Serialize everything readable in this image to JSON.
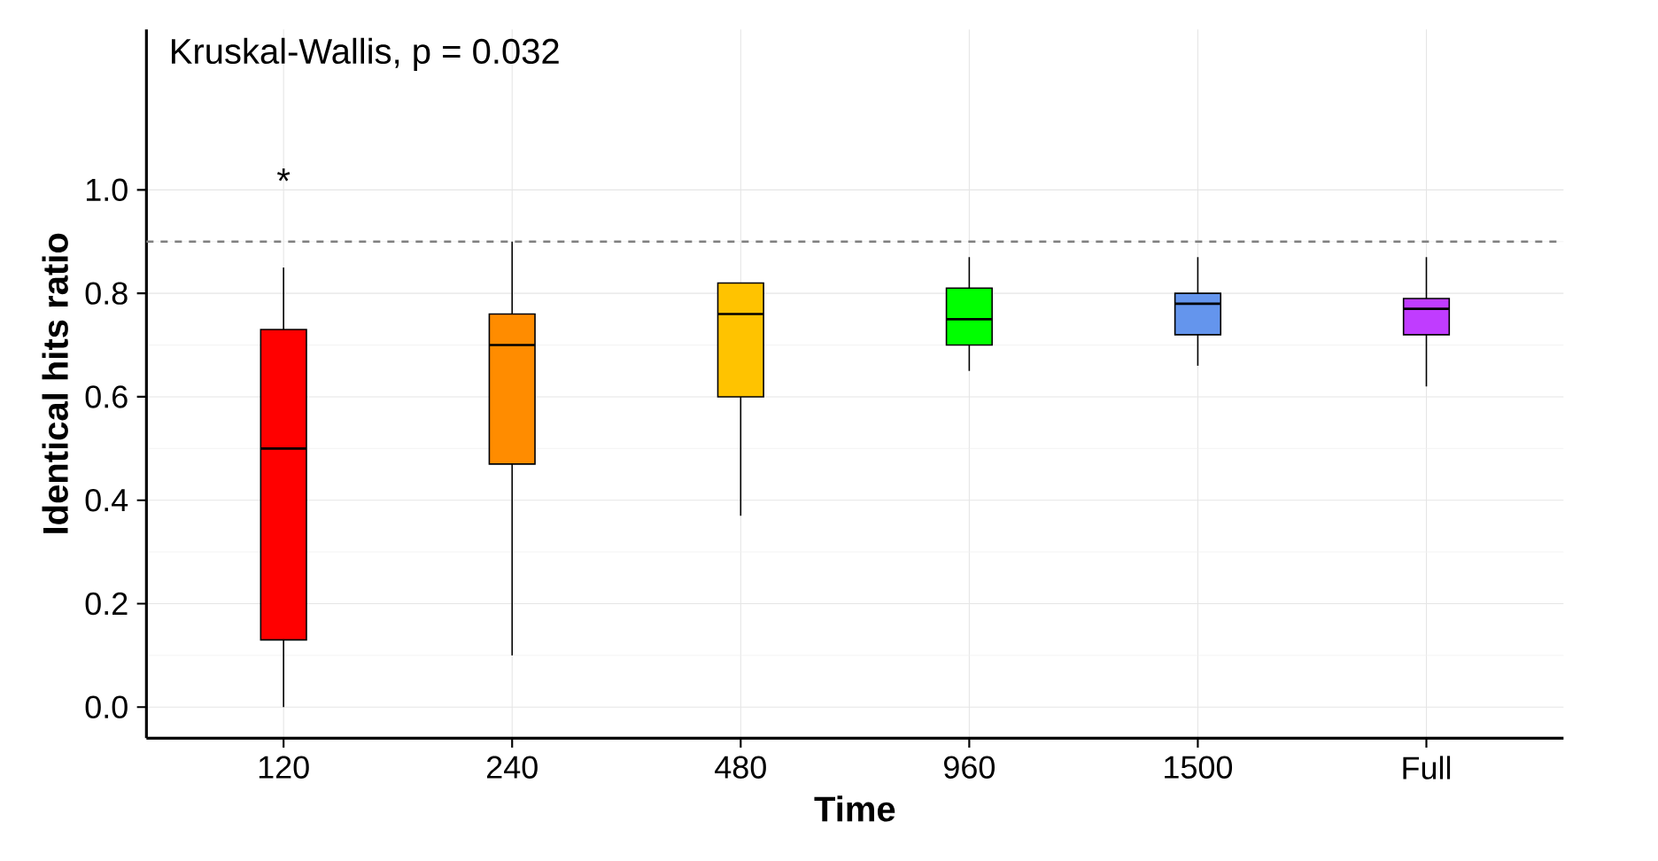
{
  "chart_data": {
    "type": "box",
    "xlabel": "Time",
    "ylabel": "Identical hits ratio",
    "categories": [
      "120",
      "240",
      "480",
      "960",
      "1500",
      "Full"
    ],
    "colors": [
      "#ff0000",
      "#ff8c00",
      "#ffc300",
      "#00ff00",
      "#6495ed",
      "#c03cff"
    ],
    "boxes": [
      {
        "low": 0.0,
        "q1": 0.13,
        "median": 0.5,
        "q3": 0.73,
        "high": 0.85
      },
      {
        "low": 0.1,
        "q1": 0.47,
        "median": 0.7,
        "q3": 0.76,
        "high": 0.9
      },
      {
        "low": 0.37,
        "q1": 0.6,
        "median": 0.76,
        "q3": 0.82,
        "high": 0.82
      },
      {
        "low": 0.65,
        "q1": 0.7,
        "median": 0.75,
        "q3": 0.81,
        "high": 0.87
      },
      {
        "low": 0.66,
        "q1": 0.72,
        "median": 0.78,
        "q3": 0.8,
        "high": 0.87
      },
      {
        "low": 0.62,
        "q1": 0.72,
        "median": 0.77,
        "q3": 0.79,
        "high": 0.87
      }
    ],
    "ylim": [
      -0.06,
      1.31
    ],
    "yticks": [
      {
        "value": 0,
        "label": "0.0"
      },
      {
        "value": 0.2,
        "label": "0.2"
      },
      {
        "value": 0.4,
        "label": "0.4"
      },
      {
        "value": 0.6,
        "label": "0.6"
      },
      {
        "value": 0.8,
        "label": "0.8"
      },
      {
        "value": 1.0,
        "label": "1.0"
      }
    ],
    "grid": true,
    "ref_lines": [
      {
        "axis": "y",
        "value": 0.9,
        "color": "#808080",
        "line_style": "dashed"
      }
    ],
    "annotations": [
      "Kruskal-Wallis, p = 0.032",
      "*"
    ]
  }
}
